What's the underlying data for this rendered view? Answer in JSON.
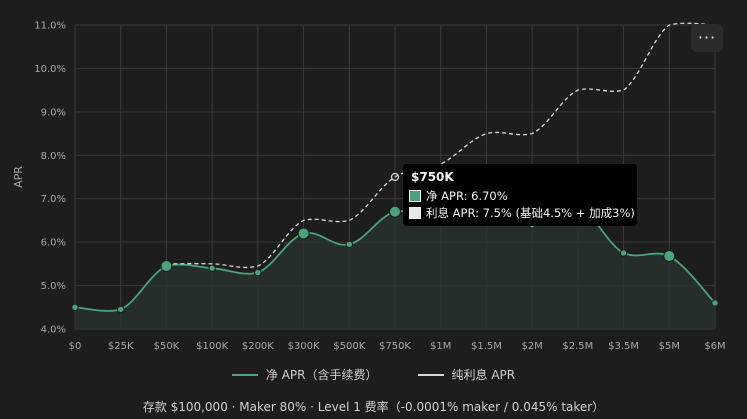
{
  "chart_data": {
    "type": "line",
    "ylabel": "APR",
    "xlabel": "",
    "y_unit": "%",
    "ylim": [
      4.0,
      11.0
    ],
    "y_ticks": [
      "4.0%",
      "5.0%",
      "6.0%",
      "7.0%",
      "8.0%",
      "9.0%",
      "10.0%",
      "11.0%"
    ],
    "categories": [
      "$0",
      "$25K",
      "$50K",
      "$100K",
      "$200K",
      "$300K",
      "$500K",
      "$750K",
      "$1M",
      "$1.5M",
      "$2M",
      "$2.5M",
      "$3.5M",
      "$5M",
      "$6M"
    ],
    "grid": true,
    "legend_position": "bottom",
    "series": [
      {
        "name": "净 APR（含手续费）",
        "color": "#4aa37b",
        "style": "solid",
        "fill": true,
        "values": [
          4.5,
          4.45,
          5.45,
          5.4,
          5.3,
          6.2,
          5.95,
          6.7,
          6.5,
          7.0,
          6.4,
          6.8,
          5.75,
          5.68,
          4.6
        ],
        "large_markers": [
          2,
          5,
          7,
          13
        ]
      },
      {
        "name": "纯利息 APR",
        "color": "#d8d8d8",
        "style": "dashed",
        "fill": false,
        "x_start": 2,
        "values": [
          null,
          null,
          5.5,
          5.5,
          5.45,
          6.5,
          6.5,
          7.5,
          7.8,
          8.5,
          8.5,
          9.5,
          9.5,
          11.0,
          11.0
        ]
      }
    ]
  },
  "tooltip": {
    "title": "$750K",
    "rows": [
      {
        "label": "净 APR: 6.70%",
        "color": "#4aa37b"
      },
      {
        "label": "利息 APR: 7.5% (基础4.5% + 加成3%)",
        "color": "#e8e8e8"
      }
    ]
  },
  "menu_button": {
    "label": "···"
  },
  "footer": "存款 $100,000 · Maker 80% · Level 1 费率（-0.0001% maker / 0.045% taker）"
}
